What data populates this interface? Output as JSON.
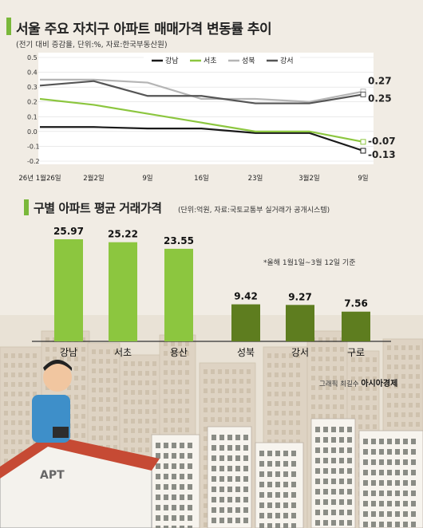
{
  "header": {
    "title": "서울 주요 자치구 아파트 매매가격 변동률 추이",
    "subtitle": "(전기 대비 증감율, 단위:%, 자료:한국부동산원)"
  },
  "section2": {
    "title": "구별 아파트 평균 거래가격",
    "subtitle": "(단위:억원, 자료:국토교통부 실거래가 공개시스템)",
    "note": "*올해 1월1일~3월 12일 기준"
  },
  "credit": {
    "prefix": "그래픽 최길수",
    "brand": "아시아경제"
  },
  "building_label": "APT",
  "colors": {
    "gangnam": "#1a1a1a",
    "seocho": "#8cc63f",
    "seongbuk": "#b5b5b5",
    "gangseo": "#555555",
    "bar_light": "#8cc63f",
    "bar_dark": "#5e7d1f",
    "accent": "#7ab83a"
  },
  "chart_data": [
    {
      "type": "line",
      "x": [
        "26년 1월26일",
        "2월2일",
        "9일",
        "16일",
        "23일",
        "3월2일",
        "9일"
      ],
      "yticks": [
        "0.5",
        "0.4",
        "0.3",
        "0.2",
        "0.1",
        "0.0",
        "-0.1",
        "-0.2"
      ],
      "ylim": [
        -0.2,
        0.5
      ],
      "legend_position": "top",
      "series": [
        {
          "name": "강남",
          "key": "gangnam",
          "values": [
            0.03,
            0.03,
            0.02,
            0.02,
            -0.01,
            -0.01,
            -0.13
          ]
        },
        {
          "name": "서초",
          "key": "seocho",
          "values": [
            0.22,
            0.18,
            0.12,
            0.06,
            0.0,
            0.0,
            -0.07
          ]
        },
        {
          "name": "성북",
          "key": "seongbuk",
          "values": [
            0.35,
            0.35,
            0.33,
            0.22,
            0.22,
            0.2,
            0.27
          ]
        },
        {
          "name": "강서",
          "key": "gangseo",
          "values": [
            0.31,
            0.34,
            0.24,
            0.24,
            0.19,
            0.19,
            0.25
          ]
        }
      ],
      "end_labels": [
        "0.27",
        "0.25",
        "-0.07",
        "-0.13"
      ]
    },
    {
      "type": "bar",
      "categories": [
        "강남",
        "서초",
        "용산",
        "성북",
        "강서",
        "구로"
      ],
      "values": [
        25.97,
        25.22,
        23.55,
        9.42,
        9.27,
        7.56
      ],
      "value_labels": [
        "25.97",
        "25.22",
        "23.55",
        "9.42",
        "9.27",
        "7.56"
      ],
      "bar_colors": [
        "bar_light",
        "bar_light",
        "bar_light",
        "bar_dark",
        "bar_dark",
        "bar_dark"
      ]
    }
  ]
}
